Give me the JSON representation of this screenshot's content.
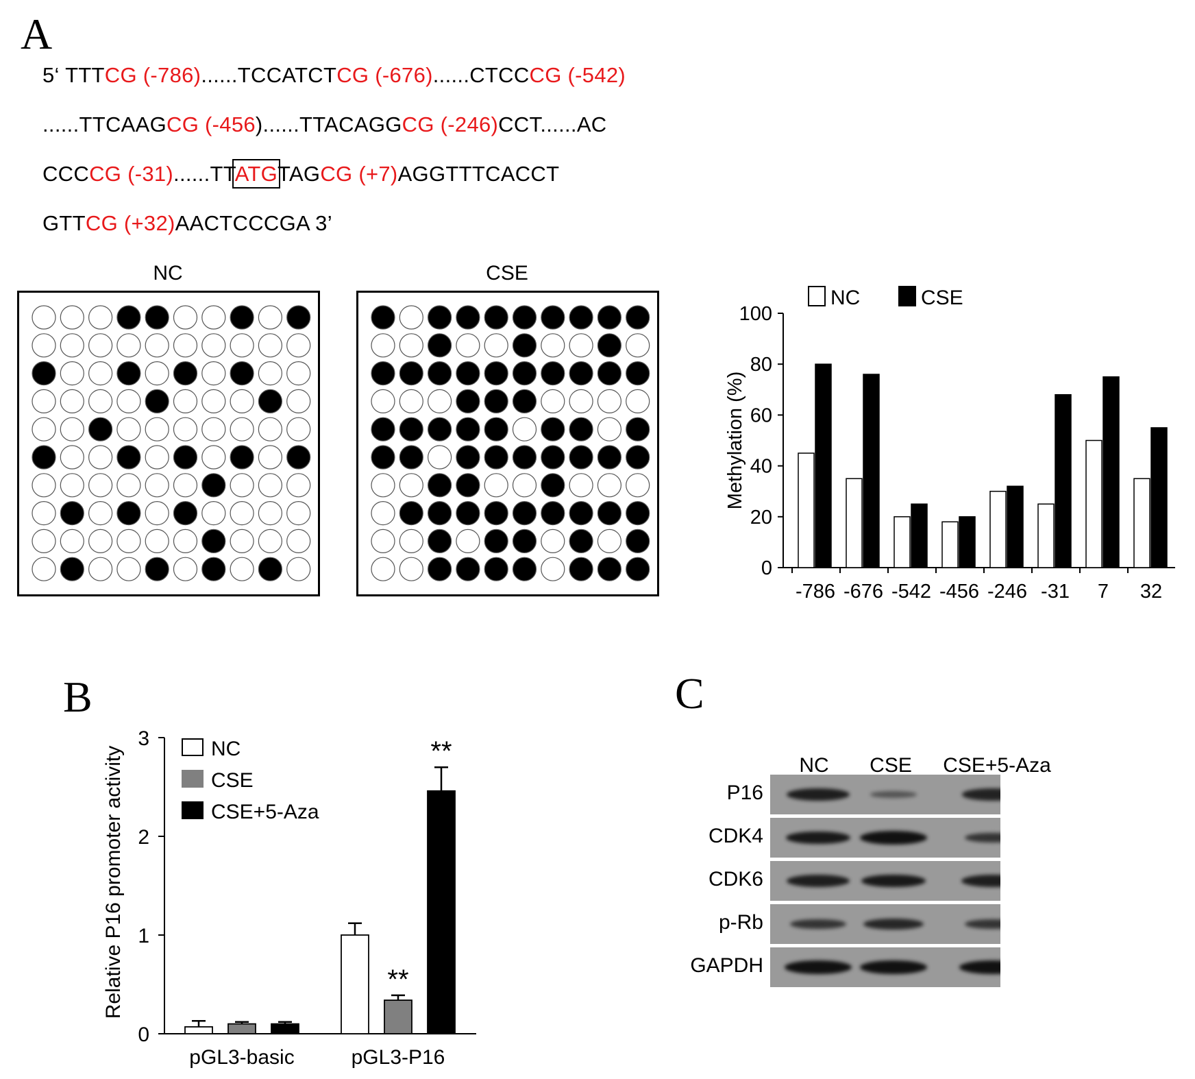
{
  "panel_a": {
    "letter": "A",
    "sequence_lines": [
      [
        {
          "text": "5‘ TTT",
          "color": "black"
        },
        {
          "text": "CG (-786)",
          "color": "red"
        },
        {
          "text": "......TCCATCT",
          "color": "black"
        },
        {
          "text": "CG (-676)",
          "color": "red"
        },
        {
          "text": "......CTCC",
          "color": "black"
        },
        {
          "text": "CG (-542)",
          "color": "red"
        }
      ],
      [
        {
          "text": "......TTCAAG",
          "color": "black"
        },
        {
          "text": "CG (-456",
          "color": "red"
        },
        {
          "text": ")......TTACAGG",
          "color": "black"
        },
        {
          "text": "CG (-246)",
          "color": "red"
        },
        {
          "text": "CCT......AC",
          "color": "black"
        }
      ],
      [
        {
          "text": "CCC",
          "color": "black"
        },
        {
          "text": "CG (-31)",
          "color": "red"
        },
        {
          "text": "......TT",
          "color": "black"
        },
        {
          "text": "ATG",
          "color": "red",
          "boxed": true
        },
        {
          "text": "TAG",
          "color": "black"
        },
        {
          "text": "CG (+7)",
          "color": "red"
        },
        {
          "text": "AGGTTTCACCT",
          "color": "black"
        }
      ],
      [
        {
          "text": "GTT",
          "color": "black"
        },
        {
          "text": "CG (+32)",
          "color": "red"
        },
        {
          "text": "AACTCCCGA 3’",
          "color": "black"
        }
      ]
    ],
    "colors": {
      "red": "#e8191b",
      "black": "#000000"
    },
    "grids": [
      {
        "title": "NC",
        "rows": [
          [
            0,
            0,
            0,
            1,
            1,
            0,
            0,
            1,
            0,
            1
          ],
          [
            0,
            0,
            0,
            0,
            0,
            0,
            0,
            0,
            0,
            0
          ],
          [
            1,
            0,
            0,
            1,
            0,
            1,
            0,
            1,
            0,
            0
          ],
          [
            0,
            0,
            0,
            0,
            1,
            0,
            0,
            0,
            1,
            0
          ],
          [
            0,
            0,
            1,
            0,
            0,
            0,
            0,
            0,
            0,
            0
          ],
          [
            1,
            0,
            0,
            1,
            0,
            1,
            0,
            1,
            0,
            1
          ],
          [
            0,
            0,
            0,
            0,
            0,
            0,
            1,
            0,
            0,
            0
          ],
          [
            0,
            1,
            0,
            1,
            0,
            1,
            0,
            0,
            0,
            0
          ],
          [
            0,
            0,
            0,
            0,
            0,
            0,
            1,
            0,
            0,
            0
          ],
          [
            0,
            1,
            0,
            0,
            1,
            0,
            1,
            0,
            1,
            0
          ]
        ]
      },
      {
        "title": "CSE",
        "rows": [
          [
            1,
            0,
            1,
            1,
            1,
            1,
            1,
            1,
            1,
            1
          ],
          [
            0,
            0,
            1,
            0,
            0,
            1,
            0,
            0,
            1,
            0
          ],
          [
            1,
            1,
            1,
            1,
            1,
            1,
            1,
            1,
            1,
            1
          ],
          [
            0,
            0,
            0,
            1,
            1,
            1,
            0,
            0,
            0,
            0
          ],
          [
            1,
            1,
            1,
            1,
            1,
            0,
            1,
            1,
            0,
            1
          ],
          [
            1,
            1,
            0,
            1,
            1,
            1,
            1,
            1,
            1,
            1
          ],
          [
            0,
            0,
            1,
            1,
            0,
            0,
            1,
            0,
            0,
            0
          ],
          [
            0,
            1,
            1,
            1,
            1,
            1,
            1,
            1,
            1,
            1
          ],
          [
            0,
            0,
            1,
            0,
            1,
            1,
            0,
            1,
            0,
            1
          ],
          [
            0,
            0,
            1,
            1,
            1,
            1,
            0,
            1,
            1,
            1
          ]
        ]
      }
    ]
  },
  "chart_data": [
    {
      "type": "bar",
      "categories": [
        "-786",
        "-676",
        "-542",
        "-456",
        "-246",
        "-31",
        "7",
        "32"
      ],
      "series": [
        {
          "name": "NC",
          "values": [
            45,
            35,
            20,
            18,
            30,
            25,
            50,
            35
          ],
          "fill": "#ffffff"
        },
        {
          "name": "CSE",
          "values": [
            80,
            76,
            25,
            20,
            32,
            68,
            75,
            55
          ],
          "fill": "#000000"
        }
      ],
      "ylabel": "Methylation (%)",
      "xlabel": "",
      "ylim": [
        0,
        100
      ],
      "yticks": [
        0,
        20,
        40,
        60,
        80,
        100
      ],
      "legend": "top-left",
      "grid": false
    },
    {
      "type": "bar",
      "panel_letter": "B",
      "categories": [
        "pGL3-basic",
        "pGL3-P16"
      ],
      "series": [
        {
          "name": "NC",
          "values": [
            0.07,
            1.0
          ],
          "errors": [
            0.06,
            0.12
          ],
          "fill": "#ffffff"
        },
        {
          "name": "CSE",
          "values": [
            0.1,
            0.34
          ],
          "errors": [
            0.02,
            0.05
          ],
          "fill": "#808080"
        },
        {
          "name": "CSE+5-Aza",
          "values": [
            0.1,
            2.46
          ],
          "errors": [
            0.02,
            0.24
          ],
          "fill": "#000000"
        }
      ],
      "annotations": [
        {
          "category": "pGL3-P16",
          "series": "CSE",
          "text": "**"
        },
        {
          "category": "pGL3-P16",
          "series": "CSE+5-Aza",
          "text": "**"
        }
      ],
      "ylabel": "Relative P16 promoter activity",
      "xlabel": "",
      "ylim": [
        0,
        3
      ],
      "yticks": [
        0,
        1,
        2,
        3
      ],
      "legend": "top-left",
      "grid": false
    }
  ],
  "panel_c": {
    "letter": "C",
    "lanes": [
      "NC",
      "CSE",
      "CSE+5-Aza"
    ],
    "blots": [
      {
        "label": "P16",
        "intensities": [
          0.85,
          0.25,
          0.8
        ]
      },
      {
        "label": "CDK4",
        "intensities": [
          0.9,
          1.0,
          0.6
        ]
      },
      {
        "label": "CDK6",
        "intensities": [
          0.85,
          0.9,
          0.85
        ]
      },
      {
        "label": "p-Rb",
        "intensities": [
          0.6,
          0.75,
          0.6
        ]
      },
      {
        "label": "GAPDH",
        "intensities": [
          1.0,
          1.0,
          1.0
        ]
      }
    ]
  }
}
